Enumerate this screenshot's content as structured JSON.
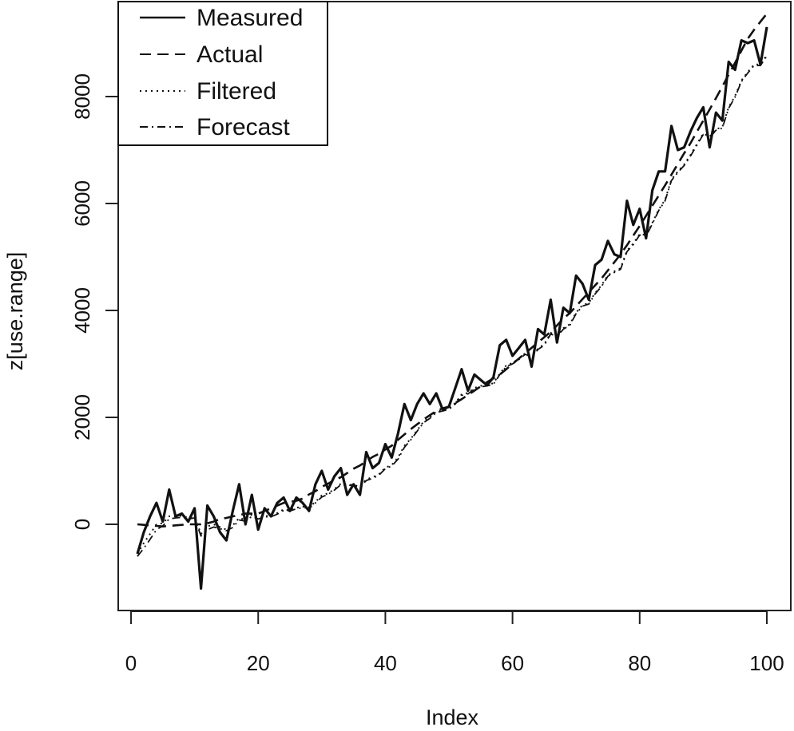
{
  "chart_data": {
    "type": "line",
    "xlabel": "Index",
    "ylabel": "z[use.range]",
    "xlim": [
      1,
      100
    ],
    "ylim": [
      -1300,
      9500
    ],
    "x_ticks": [
      0,
      20,
      40,
      60,
      80,
      100
    ],
    "y_ticks": [
      0,
      2000,
      4000,
      6000,
      8000
    ],
    "legend_position": "top-left",
    "x": [
      1,
      2,
      3,
      4,
      5,
      6,
      7,
      8,
      9,
      10,
      11,
      12,
      13,
      14,
      15,
      16,
      17,
      18,
      19,
      20,
      21,
      22,
      23,
      24,
      25,
      26,
      27,
      28,
      29,
      30,
      31,
      32,
      33,
      34,
      35,
      36,
      37,
      38,
      39,
      40,
      41,
      42,
      43,
      44,
      45,
      46,
      47,
      48,
      49,
      50,
      51,
      52,
      53,
      54,
      55,
      56,
      57,
      58,
      59,
      60,
      61,
      62,
      63,
      64,
      65,
      66,
      67,
      68,
      69,
      70,
      71,
      72,
      73,
      74,
      75,
      76,
      77,
      78,
      79,
      80,
      81,
      82,
      83,
      84,
      85,
      86,
      87,
      88,
      89,
      90,
      91,
      92,
      93,
      94,
      95,
      96,
      97,
      98,
      99,
      100
    ],
    "series": [
      {
        "name": "Measured",
        "style": "solid",
        "values": [
          -550,
          -150,
          150,
          400,
          50,
          650,
          150,
          200,
          50,
          300,
          -1200,
          350,
          150,
          -150,
          -300,
          250,
          750,
          0,
          550,
          -100,
          300,
          150,
          400,
          500,
          250,
          500,
          400,
          250,
          750,
          1000,
          650,
          900,
          1050,
          550,
          750,
          550,
          1350,
          1050,
          1150,
          1500,
          1250,
          1700,
          2250,
          1950,
          2250,
          2450,
          2250,
          2450,
          2150,
          2200,
          2550,
          2900,
          2500,
          2800,
          2700,
          2600,
          2750,
          3350,
          3450,
          3150,
          3300,
          3450,
          2950,
          3650,
          3550,
          4200,
          3400,
          4050,
          3950,
          4650,
          4500,
          4200,
          4850,
          4950,
          5300,
          5050,
          5000,
          6050,
          5600,
          5900,
          5350,
          6250,
          6600,
          6600,
          7450,
          7000,
          7050,
          7350,
          7600,
          7800,
          7050,
          7700,
          7550,
          8650,
          8500,
          9050,
          9000,
          9050,
          8600,
          9300
        ]
      },
      {
        "name": "Actual",
        "style": "dashed",
        "values": [
          0,
          -10,
          -20,
          -30,
          -40,
          -30,
          -20,
          -10,
          0,
          0,
          0,
          20,
          50,
          100,
          120,
          150,
          170,
          200,
          200,
          200,
          250,
          300,
          350,
          400,
          420,
          440,
          480,
          560,
          620,
          700,
          760,
          830,
          880,
          960,
          1040,
          1100,
          1180,
          1260,
          1320,
          1400,
          1470,
          1580,
          1680,
          1780,
          1870,
          1960,
          2040,
          2120,
          2170,
          2200,
          2270,
          2340,
          2420,
          2500,
          2580,
          2660,
          2730,
          2800,
          2900,
          3000,
          3100,
          3200,
          3300,
          3400,
          3500,
          3600,
          3720,
          3850,
          3950,
          4080,
          4210,
          4340,
          4470,
          4600,
          4750,
          4900,
          5050,
          5220,
          5400,
          5580,
          5770,
          5960,
          6150,
          6340,
          6540,
          6740,
          6940,
          7130,
          7340,
          7550,
          7760,
          7970,
          8190,
          8410,
          8630,
          8860,
          9080,
          9250,
          9400,
          9550
        ]
      },
      {
        "name": "Filtered",
        "style": "dotted",
        "values": [
          -550,
          -350,
          -180,
          0,
          20,
          150,
          150,
          160,
          120,
          140,
          -180,
          -40,
          0,
          -50,
          -100,
          -20,
          120,
          80,
          180,
          120,
          160,
          150,
          210,
          280,
          260,
          310,
          330,
          320,
          420,
          540,
          580,
          660,
          760,
          740,
          740,
          700,
          840,
          880,
          940,
          1060,
          1110,
          1250,
          1470,
          1600,
          1760,
          1920,
          2000,
          2110,
          2140,
          2160,
          2270,
          2430,
          2460,
          2550,
          2590,
          2600,
          2640,
          2820,
          2970,
          3020,
          3100,
          3200,
          3150,
          3290,
          3370,
          3580,
          3530,
          3670,
          3740,
          3960,
          4100,
          4140,
          4330,
          4470,
          4660,
          4730,
          4790,
          5120,
          5250,
          5430,
          5410,
          5640,
          5890,
          6070,
          6450,
          6600,
          6730,
          6910,
          7110,
          7310,
          7250,
          7390,
          7430,
          7800,
          8010,
          8300,
          8460,
          8600,
          8600,
          8780
        ]
      },
      {
        "name": "Forecast",
        "style": "dashdot",
        "values": [
          -600,
          -450,
          -280,
          -100,
          -30,
          100,
          120,
          130,
          100,
          120,
          -220,
          -100,
          -50,
          -80,
          -120,
          -60,
          80,
          60,
          150,
          100,
          140,
          140,
          190,
          260,
          250,
          290,
          310,
          300,
          400,
          510,
          560,
          640,
          740,
          730,
          730,
          690,
          820,
          860,
          920,
          1040,
          1090,
          1220,
          1440,
          1580,
          1740,
          1900,
          1980,
          2090,
          2120,
          2150,
          2250,
          2410,
          2440,
          2530,
          2570,
          2590,
          2620,
          2800,
          2950,
          3000,
          3080,
          3180,
          3130,
          3270,
          3350,
          3560,
          3510,
          3650,
          3720,
          3940,
          4080,
          4120,
          4310,
          4450,
          4640,
          4710,
          4770,
          5100,
          5230,
          5410,
          5390,
          5620,
          5870,
          6050,
          6430,
          6580,
          6710,
          6890,
          7090,
          7290,
          7230,
          7370,
          7410,
          7780,
          7990,
          8280,
          8440,
          8580,
          8580,
          8760
        ]
      }
    ]
  }
}
